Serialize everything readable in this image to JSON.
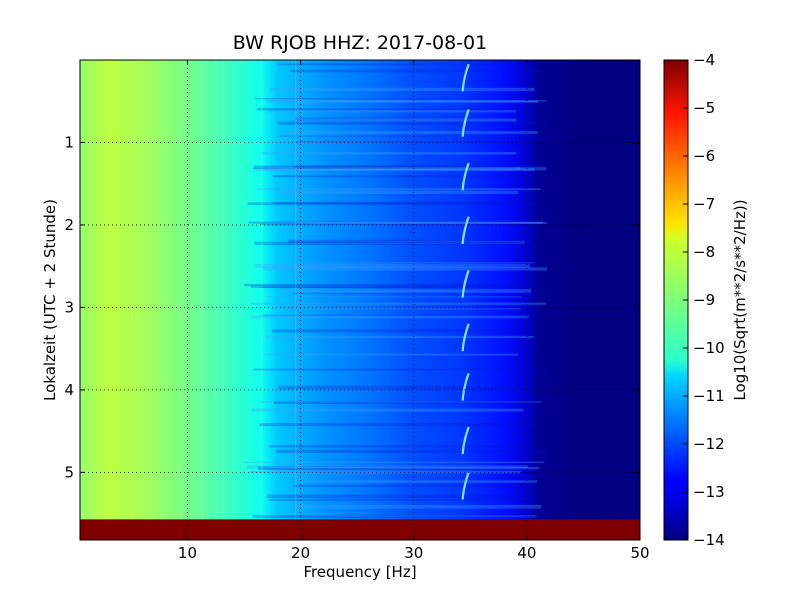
{
  "chart_data": {
    "type": "heatmap",
    "title": "BW RJOB HHZ: 2017-08-01",
    "xlabel": "Frequency [Hz]",
    "ylabel": "Lokalzeit (UTC + 2 Stunde)",
    "xlim": [
      0.5,
      50
    ],
    "ylim": [
      5.82,
      0.0
    ],
    "x_ticks": [
      10,
      20,
      30,
      40,
      50
    ],
    "y_ticks": [
      1,
      2,
      3,
      4,
      5
    ],
    "grid": true,
    "colormap": "jet",
    "colorbar": {
      "label": "Log10(Sqrt(m**2/s**2/Hz))",
      "range": [
        -14,
        -4
      ],
      "ticks": [
        -4,
        -5,
        -6,
        -7,
        -8,
        -9,
        -10,
        -11,
        -12,
        -13,
        -14
      ]
    },
    "value_profile": {
      "frequency_hz": [
        0.5,
        3,
        6,
        10,
        14,
        16.5,
        18,
        22,
        26,
        30,
        34,
        38,
        40,
        41,
        45,
        50
      ],
      "log10_psd": [
        -8.8,
        -8.4,
        -8.6,
        -9.1,
        -9.7,
        -10.1,
        -10.8,
        -11.3,
        -11.6,
        -12.0,
        -12.2,
        -12.6,
        -13.2,
        -13.8,
        -14.0,
        -14.0
      ]
    },
    "annotations": {
      "tonal_line_hz": 34.5,
      "no_data_band_hours": [
        5.57,
        5.82
      ]
    }
  }
}
